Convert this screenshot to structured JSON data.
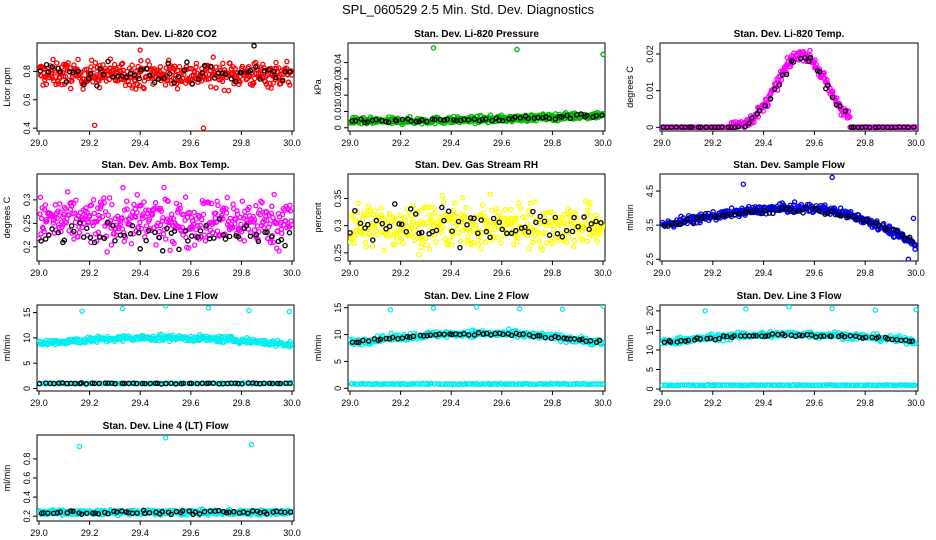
{
  "title": "SPL_060529  2.5 Min. Std. Dev. Diagnostics",
  "chart_data": [
    {
      "id": "co2",
      "type": "scatter",
      "title": "Stan. Dev. Li-820 CO2",
      "ylabel": "Licor ppm",
      "xlim": [
        29.0,
        30.0
      ],
      "ylim": [
        0.38,
        1.0
      ],
      "yticks": [
        0.4,
        0.6,
        0.8
      ],
      "xticks": [
        29.0,
        29.2,
        29.4,
        29.6,
        29.8,
        30.0
      ],
      "series": [
        {
          "name": "all",
          "color": "#ff0000",
          "model": "band",
          "base": 0.78,
          "spread": 0.09,
          "n": 420,
          "outliers": [
            [
              29.22,
              0.42
            ],
            [
              29.65,
              0.4
            ],
            [
              29.4,
              0.95
            ]
          ]
        },
        {
          "name": "selected",
          "color": "#000000",
          "model": "band",
          "base": 0.78,
          "spread": 0.08,
          "n": 60,
          "outliers": [
            [
              29.85,
              0.98
            ]
          ]
        }
      ]
    },
    {
      "id": "press",
      "type": "scatter",
      "title": "Stan. Dev. Li-820 Pressure",
      "ylabel": "kPa",
      "xlim": [
        29.0,
        30.0
      ],
      "ylim": [
        -0.002,
        0.052
      ],
      "yticks": [
        0.0,
        0.01,
        0.02,
        0.03,
        0.04
      ],
      "xticks": [
        29.0,
        29.2,
        29.4,
        29.6,
        29.8,
        30.0
      ],
      "series": [
        {
          "name": "all",
          "color": "#00bb00",
          "model": "band",
          "base": 0.004,
          "spread": 0.002,
          "n": 420,
          "trend": 0.004,
          "outliers": [
            [
              29.33,
              0.049
            ],
            [
              29.66,
              0.048
            ],
            [
              30.0,
              0.045
            ]
          ]
        },
        {
          "name": "selected",
          "color": "#000000",
          "model": "band",
          "base": 0.004,
          "spread": 0.0015,
          "n": 60,
          "trend": 0.004,
          "outliers": []
        }
      ]
    },
    {
      "id": "temp",
      "type": "scatter",
      "title": "Stan. Dev. Li-820 Temp.",
      "ylabel": "degrees C",
      "xlim": [
        29.0,
        30.0
      ],
      "ylim": [
        -0.001,
        0.023
      ],
      "yticks": [
        0.0,
        0.01,
        0.02
      ],
      "xticks": [
        29.0,
        29.2,
        29.4,
        29.6,
        29.8,
        30.0
      ],
      "series": [
        {
          "name": "all",
          "color": "#ff00ff",
          "model": "hump",
          "peak": 0.02,
          "center": 29.55,
          "width": 0.17,
          "lo": 29.27,
          "hi": 29.74,
          "spread": 0.0015,
          "n": 420,
          "outliers": []
        },
        {
          "name": "selected",
          "color": "#000000",
          "model": "hump",
          "peak": 0.019,
          "center": 29.55,
          "width": 0.17,
          "lo": 29.27,
          "hi": 29.74,
          "spread": 0.0012,
          "n": 60,
          "outliers": []
        }
      ]
    },
    {
      "id": "ambtemp",
      "type": "scatter",
      "title": "Stan. Dev. Amb. Box Temp.",
      "ylabel": "degrees C",
      "xlim": [
        29.0,
        30.0
      ],
      "ylim": [
        0.17,
        0.355
      ],
      "yticks": [
        0.2,
        0.25,
        0.3
      ],
      "xticks": [
        29.0,
        29.2,
        29.4,
        29.6,
        29.8,
        30.0
      ],
      "series": [
        {
          "name": "all",
          "color": "#ff00ff",
          "model": "band",
          "base": 0.255,
          "spread": 0.05,
          "n": 420,
          "outliers": []
        },
        {
          "name": "selected",
          "color": "#000000",
          "model": "band",
          "base": 0.225,
          "spread": 0.03,
          "n": 60,
          "outliers": []
        }
      ]
    },
    {
      "id": "rh",
      "type": "scatter",
      "title": "Stan. Dev. Gas Stream RH",
      "ylabel": "percent",
      "xlim": [
        29.0,
        30.0
      ],
      "ylim": [
        0.235,
        0.395
      ],
      "yticks": [
        0.25,
        0.3,
        0.35
      ],
      "xticks": [
        29.0,
        29.2,
        29.4,
        29.6,
        29.8,
        30.0
      ],
      "series": [
        {
          "name": "all",
          "color": "#ffff00",
          "model": "band",
          "base": 0.3,
          "spread": 0.04,
          "n": 420,
          "outliers": []
        },
        {
          "name": "selected",
          "color": "#000000",
          "model": "band",
          "base": 0.3,
          "spread": 0.035,
          "n": 60,
          "outliers": []
        }
      ]
    },
    {
      "id": "sflow",
      "type": "scatter",
      "title": "Stan. Dev. Sample Flow",
      "ylabel": "ml/min",
      "xlim": [
        29.0,
        30.0
      ],
      "ylim": [
        2.45,
        5.0
      ],
      "yticks": [
        2.5,
        3.5,
        4.5
      ],
      "xticks": [
        29.0,
        29.2,
        29.4,
        29.6,
        29.8,
        30.0
      ],
      "series": [
        {
          "name": "all",
          "color": "#0000ee",
          "model": "arch",
          "start": 3.5,
          "peak": 4.0,
          "end": 2.9,
          "peakx": 29.55,
          "spread": 0.12,
          "n": 420,
          "outliers": [
            [
              29.32,
              4.7
            ],
            [
              29.67,
              4.9
            ],
            [
              29.99,
              3.7
            ],
            [
              29.97,
              2.5
            ]
          ]
        },
        {
          "name": "selected",
          "color": "#000000",
          "model": "arch",
          "start": 3.5,
          "peak": 3.95,
          "end": 2.95,
          "peakx": 29.55,
          "spread": 0.08,
          "n": 60,
          "outliers": []
        }
      ]
    },
    {
      "id": "line1",
      "type": "scatter",
      "title": "Stan. Dev. Line 1 Flow",
      "ylabel": "ml/min",
      "xlim": [
        29.0,
        30.0
      ],
      "ylim": [
        -0.5,
        16.5
      ],
      "yticks": [
        0,
        5,
        10,
        15
      ],
      "xticks": [
        29.0,
        29.2,
        29.4,
        29.6,
        29.8,
        30.0
      ],
      "series": [
        {
          "name": "all",
          "color": "#00eeee",
          "model": "arch",
          "start": 9.0,
          "peak": 10.0,
          "end": 8.6,
          "peakx": 29.5,
          "spread": 0.6,
          "n": 320,
          "outliers": [
            [
              29.17,
              15.3
            ],
            [
              29.33,
              15.8
            ],
            [
              29.5,
              16.3
            ],
            [
              29.67,
              15.9
            ],
            [
              29.83,
              15.4
            ],
            [
              29.99,
              15.2
            ]
          ]
        },
        {
          "name": "low",
          "color": "#00eeee",
          "model": "band",
          "base": 1.0,
          "spread": 0.1,
          "n": 120,
          "outliers": []
        },
        {
          "name": "selected",
          "color": "#000000",
          "model": "band",
          "base": 1.0,
          "spread": 0.1,
          "n": 60,
          "outliers": []
        }
      ]
    },
    {
      "id": "line2",
      "type": "scatter",
      "title": "Stan. Dev. Line 2 Flow",
      "ylabel": "ml/min",
      "xlim": [
        29.0,
        30.0
      ],
      "ylim": [
        -0.5,
        15.5
      ],
      "yticks": [
        0,
        5,
        10,
        15
      ],
      "xticks": [
        29.0,
        29.2,
        29.4,
        29.6,
        29.8,
        30.0
      ],
      "series": [
        {
          "name": "all",
          "color": "#00eeee",
          "model": "arch",
          "start": 8.5,
          "peak": 10.2,
          "end": 8.4,
          "peakx": 29.5,
          "spread": 0.6,
          "n": 320,
          "outliers": [
            [
              29.16,
              14.6
            ],
            [
              29.33,
              14.9
            ],
            [
              29.5,
              15.1
            ],
            [
              29.67,
              14.8
            ],
            [
              29.84,
              14.7
            ],
            [
              30.0,
              15.3
            ]
          ]
        },
        {
          "name": "low",
          "color": "#00eeee",
          "model": "band",
          "base": 0.8,
          "spread": 0.1,
          "n": 140,
          "outliers": []
        },
        {
          "name": "selected",
          "color": "#000000",
          "model": "arch",
          "start": 8.5,
          "peak": 10.1,
          "end": 8.5,
          "peakx": 29.5,
          "spread": 0.3,
          "n": 60,
          "outliers": []
        }
      ]
    },
    {
      "id": "line3",
      "type": "scatter",
      "title": "Stan. Dev. Line 3 Flow",
      "ylabel": "ml/min",
      "xlim": [
        29.0,
        30.0
      ],
      "ylim": [
        -0.5,
        21.5
      ],
      "yticks": [
        0,
        5,
        10,
        15,
        20
      ],
      "xticks": [
        29.0,
        29.2,
        29.4,
        29.6,
        29.8,
        30.0
      ],
      "series": [
        {
          "name": "all",
          "color": "#00eeee",
          "model": "arch",
          "start": 12.0,
          "peak": 14.0,
          "end": 12.2,
          "peakx": 29.5,
          "spread": 0.8,
          "n": 320,
          "outliers": [
            [
              29.17,
              20.0
            ],
            [
              29.33,
              20.5
            ],
            [
              29.5,
              21.0
            ],
            [
              29.67,
              20.6
            ],
            [
              29.84,
              20.2
            ],
            [
              30.0,
              20.3
            ]
          ]
        },
        {
          "name": "low",
          "color": "#00eeee",
          "model": "band",
          "base": 1.0,
          "spread": 0.1,
          "n": 140,
          "outliers": []
        },
        {
          "name": "selected",
          "color": "#000000",
          "model": "arch",
          "start": 12.0,
          "peak": 13.8,
          "end": 12.2,
          "peakx": 29.5,
          "spread": 0.4,
          "n": 60,
          "outliers": []
        }
      ]
    },
    {
      "id": "line4",
      "type": "scatter",
      "title": "Stan. Dev. Line 4 (LT) Flow",
      "ylabel": "ml/min",
      "xlim": [
        29.0,
        30.0
      ],
      "ylim": [
        0.15,
        1.05
      ],
      "yticks": [
        0.2,
        0.4,
        0.6,
        0.8
      ],
      "xticks": [
        29.0,
        29.2,
        29.4,
        29.6,
        29.8,
        30.0
      ],
      "series": [
        {
          "name": "all",
          "color": "#00eeee",
          "model": "band",
          "base": 0.24,
          "spread": 0.025,
          "n": 420,
          "outliers": [
            [
              29.16,
              0.93
            ],
            [
              29.5,
              1.02
            ],
            [
              29.84,
              0.95
            ]
          ]
        },
        {
          "name": "selected",
          "color": "#000000",
          "model": "band",
          "base": 0.24,
          "spread": 0.02,
          "n": 60,
          "outliers": []
        }
      ]
    }
  ]
}
